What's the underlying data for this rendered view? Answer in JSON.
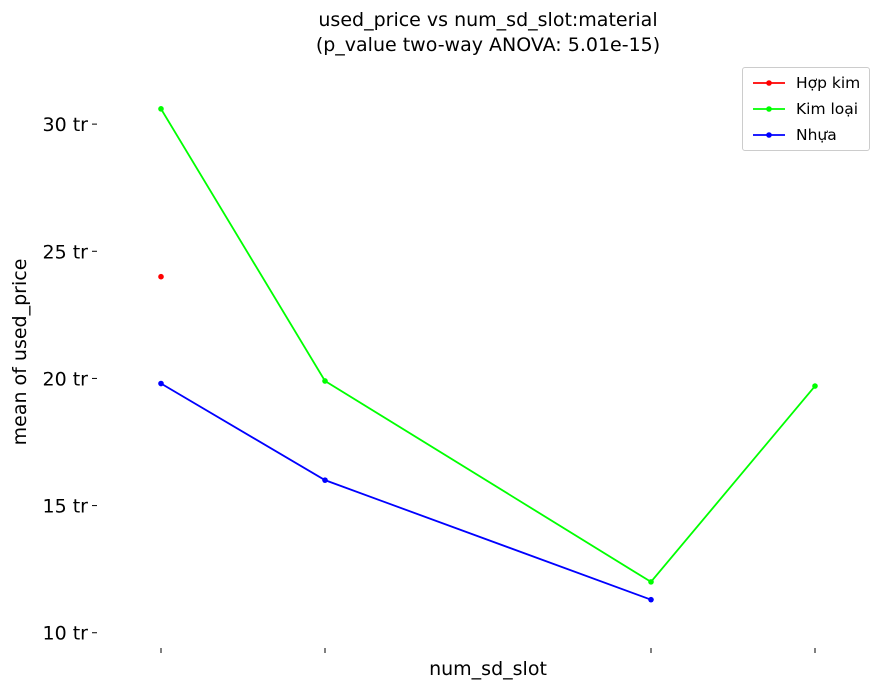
{
  "chart_data": {
    "type": "line",
    "title_line1": "used_price vs num_sd_slot:material",
    "title_line2": "(p_value two-way ANOVA: 5.01e-15)",
    "xlabel": "num_sd_slot",
    "ylabel": "mean of used_price",
    "x_categories": [
      "",
      "",
      "",
      ""
    ],
    "y_ticks": [
      {
        "value": 10,
        "label": "10 tr"
      },
      {
        "value": 15,
        "label": "15 tr"
      },
      {
        "value": 20,
        "label": "20 tr"
      },
      {
        "value": 25,
        "label": "25 tr"
      },
      {
        "value": 30,
        "label": "30 tr"
      }
    ],
    "ylim": [
      9.4,
      32.6
    ],
    "grid": false,
    "legend_position": "top-right",
    "series": [
      {
        "name": "Hợp kim",
        "color": "#ff0000",
        "values": [
          24.0,
          null,
          null,
          null
        ]
      },
      {
        "name": "Kim loại",
        "color": "#00ff00",
        "values": [
          30.6,
          19.9,
          12.0,
          19.7
        ]
      },
      {
        "name": "Nhựa",
        "color": "#0000ff",
        "values": [
          19.8,
          16.0,
          11.3,
          null
        ]
      }
    ]
  }
}
